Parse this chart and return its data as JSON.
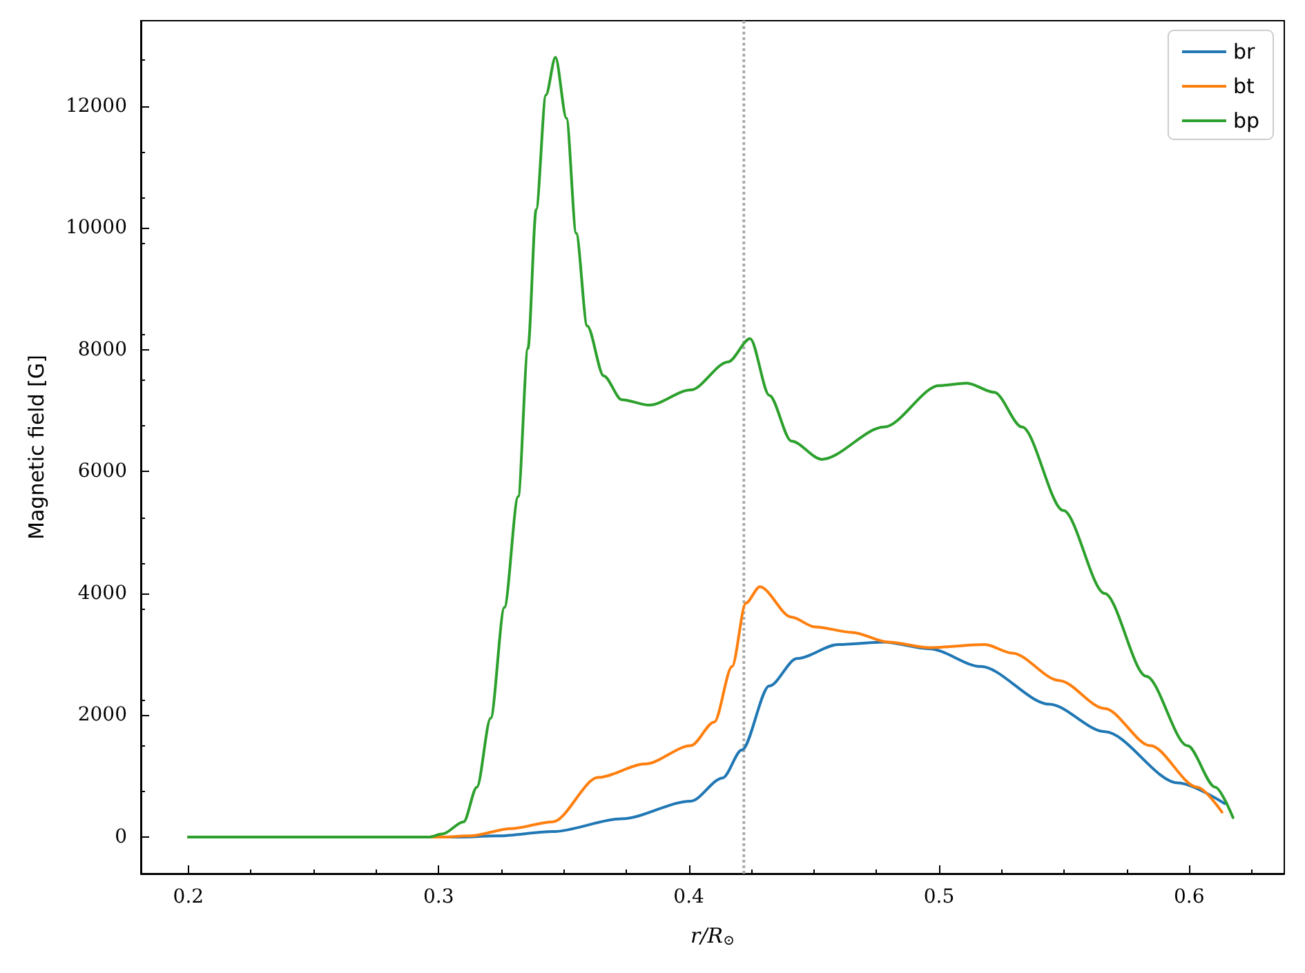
{
  "chart_data": {
    "type": "line",
    "xlabel": "r/R$_{⊙}$",
    "ylabel": "Magnetic field [G]",
    "xlim": [
      0.181,
      0.638
    ],
    "ylim": [
      -600,
      13400
    ],
    "xticks": [
      0.2,
      0.3,
      0.4,
      0.5,
      0.6
    ],
    "yticks": [
      0,
      2000,
      4000,
      6000,
      8000,
      10000,
      12000
    ],
    "grid": false,
    "legend": "top right",
    "marker": "none",
    "line_style": "solid",
    "ref_lines": [
      {
        "axis": "x",
        "value": 0.422,
        "color": "#aaaaaa",
        "line_style": "dotted"
      }
    ],
    "series": [
      {
        "name": "br",
        "color": "#1f77b4",
        "x": [
          0.2,
          0.3,
          0.307,
          0.3236,
          0.3456,
          0.3732,
          0.4008,
          0.4135,
          0.4212,
          0.4322,
          0.4432,
          0.4598,
          0.478,
          0.4962,
          0.5166,
          0.5442,
          0.5662,
          0.5955,
          0.6142
        ],
        "values": [
          0,
          0,
          0,
          20,
          90,
          300,
          590,
          970,
          1430,
          2480,
          2930,
          3160,
          3200,
          3090,
          2800,
          2180,
          1730,
          890,
          550
        ]
      },
      {
        "name": "bt",
        "color": "#ff7f0e",
        "x": [
          0.2,
          0.3,
          0.3125,
          0.3291,
          0.3456,
          0.3638,
          0.3826,
          0.4008,
          0.4102,
          0.4173,
          0.4228,
          0.4284,
          0.441,
          0.4504,
          0.4653,
          0.4797,
          0.4962,
          0.5183,
          0.5293,
          0.548,
          0.5662,
          0.5845,
          0.6032,
          0.6131
        ],
        "values": [
          0,
          0,
          20,
          140,
          250,
          980,
          1200,
          1500,
          1890,
          2800,
          3840,
          4110,
          3610,
          3450,
          3360,
          3200,
          3110,
          3160,
          3020,
          2570,
          2110,
          1500,
          820,
          410
        ]
      },
      {
        "name": "bp",
        "color": "#2ca02c",
        "x": [
          0.2,
          0.296,
          0.3015,
          0.31,
          0.3153,
          0.3208,
          0.3263,
          0.3318,
          0.3357,
          0.339,
          0.3429,
          0.3467,
          0.3511,
          0.355,
          0.3594,
          0.366,
          0.3732,
          0.3842,
          0.4008,
          0.4157,
          0.4245,
          0.4322,
          0.441,
          0.4532,
          0.478,
          0.5001,
          0.5111,
          0.5221,
          0.5332,
          0.5497,
          0.5662,
          0.5828,
          0.5993,
          0.6104,
          0.6175
        ],
        "values": [
          0,
          0,
          50,
          250,
          820,
          1950,
          3770,
          5590,
          8020,
          10300,
          12180,
          12800,
          11800,
          9910,
          8390,
          7570,
          7180,
          7090,
          7340,
          7800,
          8180,
          7250,
          6500,
          6200,
          6730,
          7410,
          7450,
          7300,
          6730,
          5360,
          4000,
          2640,
          1500,
          820,
          320
        ]
      }
    ]
  }
}
